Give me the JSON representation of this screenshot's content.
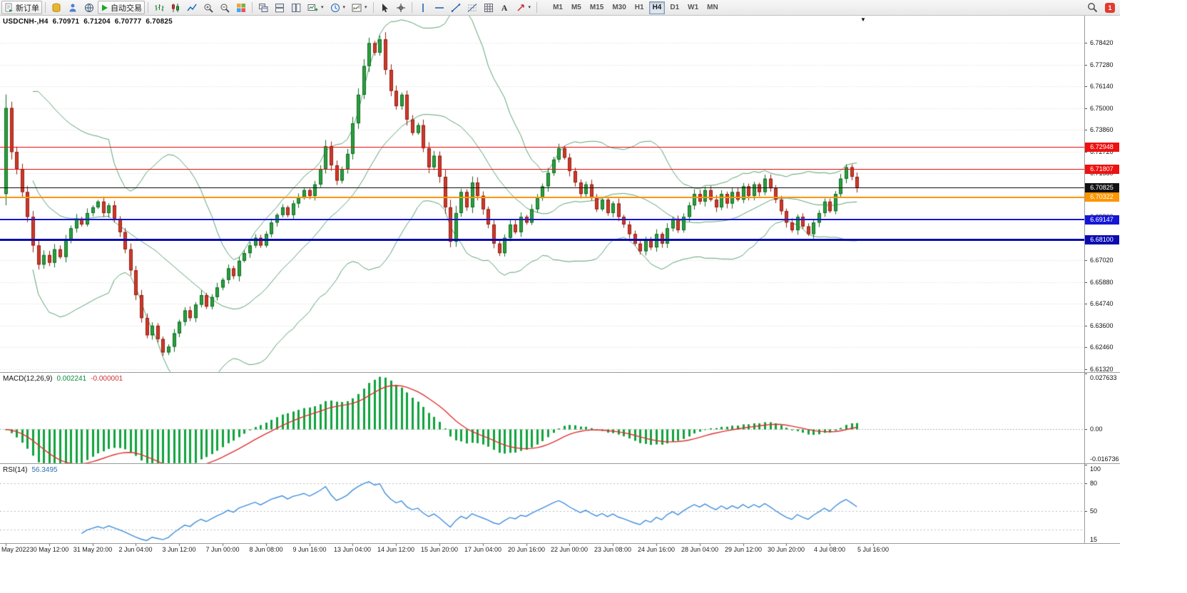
{
  "toolbar": {
    "new_order_label": "新订单",
    "autotrade_label": "自动交易",
    "text_tool": "A",
    "timeframes": [
      "M1",
      "M5",
      "M15",
      "M30",
      "H1",
      "H4",
      "D1",
      "W1",
      "MN"
    ],
    "active_timeframe": "H4",
    "notification_count": "1"
  },
  "chart": {
    "title": {
      "symbol": "USDCNH-,H4",
      "open": "6.70971",
      "high": "6.71204",
      "low": "6.70777",
      "close": "6.70825"
    },
    "price_axis": {
      "ticks": [
        "6.78420",
        "6.77280",
        "6.76140",
        "6.75000",
        "6.73860",
        "6.72720",
        "6.71580",
        "6.70440",
        "6.69300",
        "6.68160",
        "6.67020",
        "6.65880",
        "6.64740",
        "6.63600",
        "6.62460",
        "6.61320"
      ]
    },
    "levels": [
      {
        "label": "6.72948",
        "price": 6.72948,
        "color": "#ee1111",
        "thickness": 1
      },
      {
        "label": "6.71807",
        "price": 6.71807,
        "color": "#ee1111",
        "thickness": 1
      },
      {
        "label": "6.70825",
        "price": 6.70825,
        "color": "#111111",
        "thickness": 1
      },
      {
        "label": "6.70322",
        "price": 6.70322,
        "color": "#ff9500",
        "thickness": 2
      },
      {
        "label": "6.69147",
        "price": 6.69147,
        "color": "#1515d6",
        "thickness": 2
      },
      {
        "label": "6.68100",
        "price": 6.681,
        "color": "#0b0bb0",
        "thickness": 3
      }
    ],
    "time_axis": {
      "labels": [
        {
          "text": "May 2022",
          "bar": 0
        },
        {
          "text": "30 May 12:00",
          "bar": 8
        },
        {
          "text": "31 May 20:00",
          "bar": 16
        },
        {
          "text": "2 Jun 04:00",
          "bar": 24
        },
        {
          "text": "3 Jun 12:00",
          "bar": 32
        },
        {
          "text": "7 Jun 00:00",
          "bar": 40
        },
        {
          "text": "8 Jun 08:00",
          "bar": 48
        },
        {
          "text": "9 Jun 16:00",
          "bar": 56
        },
        {
          "text": "13 Jun 04:00",
          "bar": 64
        },
        {
          "text": "14 Jun 12:00",
          "bar": 72
        },
        {
          "text": "15 Jun 20:00",
          "bar": 80
        },
        {
          "text": "17 Jun 04:00",
          "bar": 88
        },
        {
          "text": "20 Jun 16:00",
          "bar": 96
        },
        {
          "text": "22 Jun 00:00",
          "bar": 104
        },
        {
          "text": "23 Jun 08:00",
          "bar": 112
        },
        {
          "text": "24 Jun 16:00",
          "bar": 120
        },
        {
          "text": "28 Jun 04:00",
          "bar": 128
        },
        {
          "text": "29 Jun 12:00",
          "bar": 136
        },
        {
          "text": "30 Jun 20:00",
          "bar": 144
        },
        {
          "text": "4 Jul 08:00",
          "bar": 152
        },
        {
          "text": "5 Jul 16:00",
          "bar": 160
        }
      ]
    }
  },
  "macd": {
    "name": "MACD(12,26,9)",
    "value_main": "0.002241",
    "value_signal": "-0.000001",
    "axis": [
      "0.027633",
      "0.00",
      "-0.016736"
    ],
    "range": [
      -0.016736,
      0.027633
    ]
  },
  "rsi": {
    "name": "RSI(14)",
    "value": "56.3495",
    "axis_labels": [
      {
        "v": 100,
        "text": "100"
      },
      {
        "v": 80,
        "text": "80"
      },
      {
        "v": 50,
        "text": "50"
      },
      {
        "v": 15,
        "text": "15"
      }
    ],
    "levels": [
      80,
      50,
      30
    ],
    "range": [
      15,
      100
    ]
  },
  "colors": {
    "up": "#2ba03c",
    "up_dark": "#0e6b24",
    "down": "#d0392b",
    "down_dark": "#8f1f12",
    "bollinger": "#5ba271",
    "macd_hist": "#0fa33c",
    "macd_signal": "#e02f2f",
    "rsi_line": "#3e8ede",
    "grid": "#d8d8d8"
  },
  "chart_data": {
    "type": "candlestick+indicators",
    "symbol": "USDCNH",
    "timeframe": "H4",
    "price_range": [
      6.6117,
      6.7984
    ],
    "indicators": {
      "bollinger": {
        "period": 20,
        "deviation": 2
      },
      "macd": {
        "fast": 12,
        "slow": 26,
        "signal": 9
      },
      "rsi": {
        "period": 14
      }
    },
    "first_open": 6.705,
    "closes": [
      6.75,
      6.727,
      6.718,
      6.706,
      6.693,
      6.678,
      6.668,
      6.673,
      6.669,
      6.676,
      6.672,
      6.681,
      6.687,
      6.692,
      6.689,
      6.695,
      6.698,
      6.701,
      6.695,
      6.699,
      6.692,
      6.685,
      6.676,
      6.665,
      6.652,
      6.64,
      6.631,
      6.636,
      6.629,
      6.622,
      6.625,
      6.632,
      6.638,
      6.644,
      6.64,
      6.647,
      6.652,
      6.646,
      6.651,
      6.656,
      6.66,
      6.666,
      6.662,
      6.67,
      6.674,
      6.678,
      6.682,
      6.678,
      6.684,
      6.69,
      6.694,
      6.698,
      6.694,
      6.7,
      6.703,
      6.707,
      6.704,
      6.71,
      6.718,
      6.73,
      6.72,
      6.712,
      6.718,
      6.726,
      6.742,
      6.757,
      6.772,
      6.784,
      6.779,
      6.786,
      6.77,
      6.759,
      6.751,
      6.757,
      6.744,
      6.737,
      6.741,
      6.729,
      6.719,
      6.725,
      6.714,
      6.698,
      6.68,
      6.695,
      6.706,
      6.698,
      6.711,
      6.704,
      6.697,
      6.689,
      6.679,
      6.674,
      6.682,
      6.689,
      6.685,
      6.693,
      6.69,
      6.697,
      6.703,
      6.709,
      6.716,
      6.723,
      6.729,
      6.724,
      6.717,
      6.711,
      6.705,
      6.71,
      6.703,
      6.697,
      6.702,
      6.695,
      6.7,
      6.693,
      6.689,
      6.684,
      6.679,
      6.675,
      6.681,
      6.677,
      6.684,
      6.679,
      6.687,
      6.692,
      6.686,
      6.693,
      6.699,
      6.705,
      6.701,
      6.707,
      6.702,
      6.698,
      6.705,
      6.7,
      6.706,
      6.702,
      6.709,
      6.704,
      6.71,
      6.706,
      6.713,
      6.708,
      6.702,
      6.696,
      6.69,
      6.686,
      6.693,
      6.688,
      6.684,
      6.69,
      6.695,
      6.701,
      6.696,
      6.705,
      6.713,
      6.719,
      6.714,
      6.70825
    ]
  }
}
